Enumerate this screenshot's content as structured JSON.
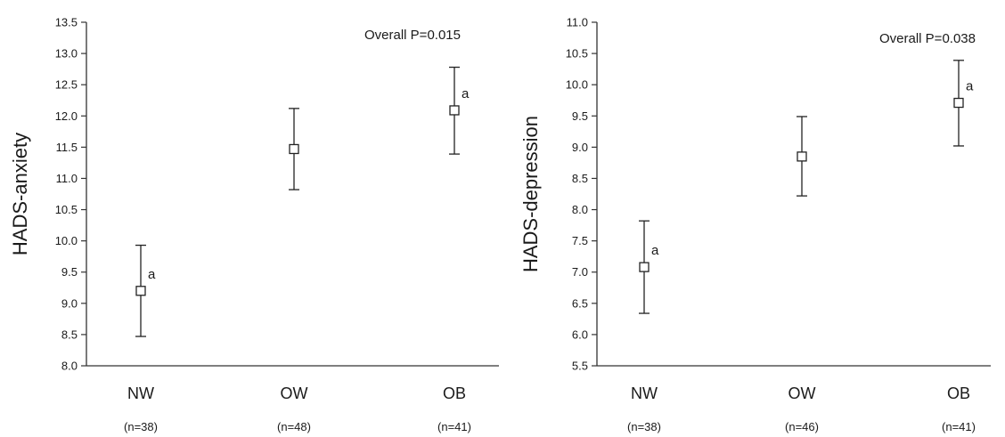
{
  "chart_data": [
    {
      "type": "scatter",
      "title": "",
      "ylabel": "HADS-anxiety",
      "xlabel": "",
      "categories": [
        "NW",
        "OW",
        "OB"
      ],
      "n_labels": [
        "(n=38)",
        "(n=48)",
        "(n=41)"
      ],
      "values": [
        9.2,
        11.47,
        12.09
      ],
      "error_low": [
        8.47,
        10.82,
        11.39
      ],
      "error_high": [
        9.93,
        12.12,
        12.78
      ],
      "markers": [
        "a",
        "",
        "a"
      ],
      "annotation": "Overall P=0.015",
      "ylim": [
        8.0,
        13.5
      ],
      "yticks": [
        "8.0",
        "8.5",
        "9.0",
        "9.5",
        "10.0",
        "10.5",
        "11.0",
        "11.5",
        "12.0",
        "12.5",
        "13.0",
        "13.5"
      ],
      "grid": false
    },
    {
      "type": "scatter",
      "title": "",
      "ylabel": "HADS-depression",
      "xlabel": "",
      "categories": [
        "NW",
        "OW",
        "OB"
      ],
      "n_labels": [
        "(n=38)",
        "(n=46)",
        "(n=41)"
      ],
      "values": [
        7.08,
        8.85,
        9.71
      ],
      "error_low": [
        6.34,
        8.22,
        9.02
      ],
      "error_high": [
        7.82,
        9.49,
        10.39
      ],
      "markers": [
        "a",
        "",
        "a"
      ],
      "annotation": "Overall P=0.038",
      "ylim": [
        5.5,
        11.0
      ],
      "yticks": [
        "5.5",
        "6.0",
        "6.5",
        "7.0",
        "7.5",
        "8.0",
        "8.5",
        "9.0",
        "9.5",
        "10.0",
        "10.5",
        "11.0"
      ],
      "grid": false
    }
  ]
}
